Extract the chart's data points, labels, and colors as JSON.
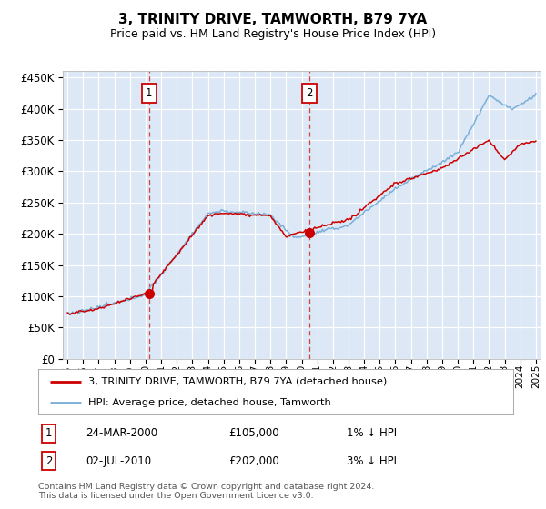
{
  "title": "3, TRINITY DRIVE, TAMWORTH, B79 7YA",
  "subtitle": "Price paid vs. HM Land Registry's House Price Index (HPI)",
  "legend_line1": "3, TRINITY DRIVE, TAMWORTH, B79 7YA (detached house)",
  "legend_line2": "HPI: Average price, detached house, Tamworth",
  "annotation1_label": "1",
  "annotation1_date": "24-MAR-2000",
  "annotation1_price": "£105,000",
  "annotation1_hpi": "1% ↓ HPI",
  "annotation1_year": 2000.22,
  "annotation1_value": 105000,
  "annotation2_label": "2",
  "annotation2_date": "02-JUL-2010",
  "annotation2_price": "£202,000",
  "annotation2_hpi": "3% ↓ HPI",
  "annotation2_year": 2010.5,
  "annotation2_value": 202000,
  "footer": "Contains HM Land Registry data © Crown copyright and database right 2024.\nThis data is licensed under the Open Government Licence v3.0.",
  "ylim": [
    0,
    460000
  ],
  "yticks": [
    0,
    50000,
    100000,
    150000,
    200000,
    250000,
    300000,
    350000,
    400000,
    450000
  ],
  "plot_bg": "#dce8f5",
  "line_color_red": "#cc0000",
  "line_color_blue": "#7ab0d8",
  "grid_color": "#ffffff",
  "annotation_border_color": "#cc0000",
  "xmin": 1995,
  "xmax": 2025
}
